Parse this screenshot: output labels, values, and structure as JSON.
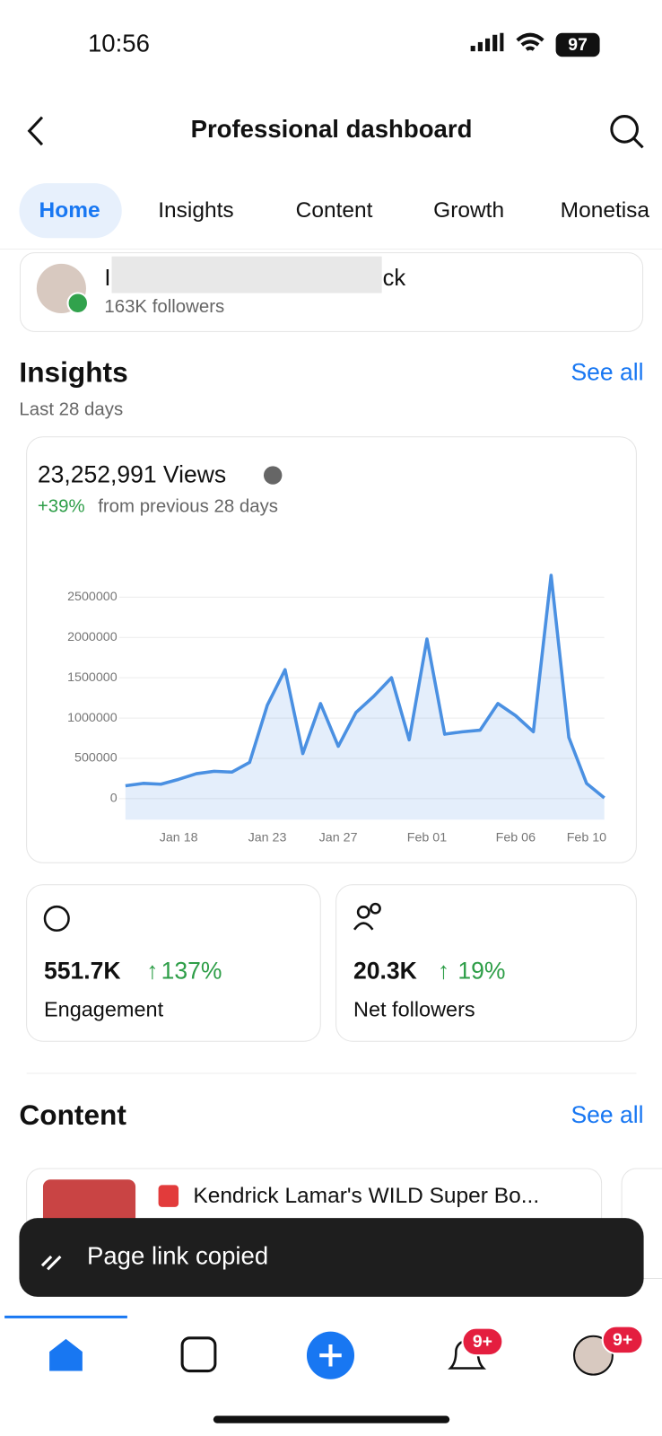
{
  "status_bar": {
    "time": "10:56",
    "battery": "97"
  },
  "header": {
    "title": "Professional dashboard"
  },
  "tabs": [
    "Home",
    "Insights",
    "Content",
    "Growth",
    "Monetisa"
  ],
  "profile": {
    "name_start": "I",
    "name_end": "ck",
    "followers": "163K followers"
  },
  "insights": {
    "title": "Insights",
    "see_all": "See all",
    "period": "Last 28 days",
    "views": "23,252,991 Views",
    "change": "+39%",
    "change_text": "from previous 28 days"
  },
  "chart_data": {
    "type": "area",
    "color": "#4a90e2",
    "categories": [
      null,
      null,
      null,
      "Jan 18",
      null,
      null,
      null,
      null,
      "Jan 23",
      null,
      null,
      null,
      "Jan 27",
      null,
      null,
      null,
      null,
      "Feb 01",
      null,
      null,
      null,
      null,
      "Feb 06",
      null,
      null,
      null,
      "Feb 10",
      null
    ],
    "values": [
      160000,
      190000,
      180000,
      240000,
      310000,
      340000,
      330000,
      450000,
      1160000,
      1600000,
      560000,
      1180000,
      650000,
      1070000,
      1270000,
      1500000,
      730000,
      1980000,
      800000,
      830000,
      850000,
      1180000,
      1030000,
      830000,
      2770000,
      760000,
      190000,
      10000
    ],
    "ylim": [
      -260000,
      3000000
    ],
    "yticks": [
      0,
      500000,
      1000000,
      1500000,
      2000000,
      2500000
    ],
    "grid": true
  },
  "stats": [
    {
      "value": "551.7K",
      "change": "137%",
      "label": "Engagement"
    },
    {
      "value": "20.3K",
      "change": "19%",
      "label": "Net followers"
    }
  ],
  "content": {
    "title": "Content",
    "see_all": "See all",
    "items": [
      {
        "title": "Kendrick Lamar's WILD Super Bo..."
      }
    ]
  },
  "toast": {
    "text": "Page link copied"
  },
  "nav": {
    "badges": [
      "9+",
      "9+"
    ]
  }
}
